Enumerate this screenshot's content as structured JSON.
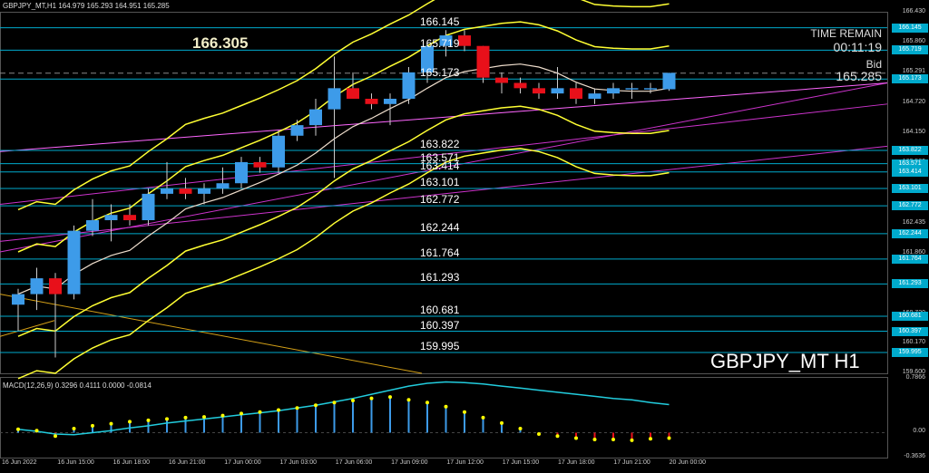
{
  "header": {
    "title": "GBPJPY_MT,H1  164.979 165.293 164.951 165.285",
    "big_price": "166.305",
    "time_remain_label": "TIME REMAIN",
    "time_remain": "00:11:19",
    "bid_label": "Bid",
    "bid": "165.285",
    "symbol_label": "GBPJPY_MT H1"
  },
  "levels": [
    {
      "label": "166.145",
      "value": 166.145
    },
    {
      "label": "165.719",
      "value": 165.719
    },
    {
      "label": "165.173",
      "value": 165.173
    },
    {
      "label": "163.822",
      "value": 163.822
    },
    {
      "label": "163.571",
      "value": 163.571
    },
    {
      "label": "163.414",
      "value": 163.414
    },
    {
      "label": "163.101",
      "value": 163.101
    },
    {
      "label": "162.772",
      "value": 162.772
    },
    {
      "label": "162.244",
      "value": 162.244
    },
    {
      "label": "161.764",
      "value": 161.764
    },
    {
      "label": "161.293",
      "value": 161.293
    },
    {
      "label": "160.681",
      "value": 160.681
    },
    {
      "label": "160.397",
      "value": 160.397
    },
    {
      "label": "159.995",
      "value": 159.995
    }
  ],
  "price_axis": {
    "ticks": [
      "166.430",
      "165.860",
      "165.291",
      "164.720",
      "164.150",
      "163.580",
      "163.010",
      "162.435",
      "161.860",
      "161.290",
      "160.720",
      "160.170",
      "159.600"
    ],
    "min": 159.6,
    "max": 166.43
  },
  "macd": {
    "title": "MACD(12,26,9) 0.3296 0.4111 0.0000 -0.0814",
    "ticks": [
      "0.7866",
      "0.00",
      "-0.3636"
    ],
    "max": 0.7866,
    "min": -0.3636
  },
  "time_axis": [
    "16 Jun 2022",
    "16 Jun 15:00",
    "16 Jun 18:00",
    "16 Jun 21:00",
    "17 Jun 00:00",
    "17 Jun 03:00",
    "17 Jun 06:00",
    "17 Jun 09:00",
    "17 Jun 12:00",
    "17 Jun 15:00",
    "17 Jun 18:00",
    "17 Jun 21:00",
    "20 Jun 00:00"
  ],
  "colors": {
    "bull": "#3d9be9",
    "bear": "#e8101a",
    "band": "#ffff33",
    "level": "#00aacc",
    "trend": "#cc33cc",
    "macd_signal": "#ffff00",
    "macd_line": "#22ccdd"
  },
  "candles": [
    {
      "o": 160.9,
      "h": 161.2,
      "l": 160.4,
      "c": 161.1
    },
    {
      "o": 161.1,
      "h": 161.6,
      "l": 160.8,
      "c": 161.4
    },
    {
      "o": 161.4,
      "h": 161.5,
      "l": 159.9,
      "c": 161.1
    },
    {
      "o": 161.1,
      "h": 162.4,
      "l": 161.0,
      "c": 162.3
    },
    {
      "o": 162.3,
      "h": 162.9,
      "l": 162.2,
      "c": 162.5
    },
    {
      "o": 162.5,
      "h": 162.8,
      "l": 162.1,
      "c": 162.6
    },
    {
      "o": 162.6,
      "h": 162.8,
      "l": 162.4,
      "c": 162.5
    },
    {
      "o": 162.5,
      "h": 163.1,
      "l": 162.4,
      "c": 163.0
    },
    {
      "o": 163.0,
      "h": 163.6,
      "l": 162.9,
      "c": 163.1
    },
    {
      "o": 163.1,
      "h": 163.3,
      "l": 162.9,
      "c": 163.0
    },
    {
      "o": 163.0,
      "h": 163.2,
      "l": 162.8,
      "c": 163.1
    },
    {
      "o": 163.1,
      "h": 163.5,
      "l": 163.0,
      "c": 163.2
    },
    {
      "o": 163.2,
      "h": 163.7,
      "l": 163.1,
      "c": 163.6
    },
    {
      "o": 163.6,
      "h": 163.7,
      "l": 163.4,
      "c": 163.5
    },
    {
      "o": 163.5,
      "h": 164.2,
      "l": 163.4,
      "c": 164.1
    },
    {
      "o": 164.1,
      "h": 164.4,
      "l": 164.0,
      "c": 164.3
    },
    {
      "o": 164.3,
      "h": 164.8,
      "l": 164.1,
      "c": 164.6
    },
    {
      "o": 164.6,
      "h": 165.6,
      "l": 163.3,
      "c": 165.0
    },
    {
      "o": 165.0,
      "h": 165.3,
      "l": 164.8,
      "c": 164.8
    },
    {
      "o": 164.8,
      "h": 164.9,
      "l": 164.6,
      "c": 164.7
    },
    {
      "o": 164.7,
      "h": 164.9,
      "l": 164.3,
      "c": 164.8
    },
    {
      "o": 164.8,
      "h": 165.4,
      "l": 164.7,
      "c": 165.3
    },
    {
      "o": 165.3,
      "h": 165.9,
      "l": 165.1,
      "c": 165.8
    },
    {
      "o": 165.8,
      "h": 166.1,
      "l": 165.6,
      "c": 166.0
    },
    {
      "o": 166.0,
      "h": 166.1,
      "l": 165.7,
      "c": 165.8
    },
    {
      "o": 165.8,
      "h": 165.8,
      "l": 165.1,
      "c": 165.2
    },
    {
      "o": 165.2,
      "h": 165.3,
      "l": 164.9,
      "c": 165.1
    },
    {
      "o": 165.1,
      "h": 165.2,
      "l": 164.9,
      "c": 165.0
    },
    {
      "o": 165.0,
      "h": 165.1,
      "l": 164.8,
      "c": 164.9
    },
    {
      "o": 164.9,
      "h": 165.4,
      "l": 164.8,
      "c": 165.0
    },
    {
      "o": 165.0,
      "h": 165.1,
      "l": 164.7,
      "c": 164.8
    },
    {
      "o": 164.8,
      "h": 165.0,
      "l": 164.7,
      "c": 164.9
    },
    {
      "o": 164.9,
      "h": 165.1,
      "l": 164.8,
      "c": 165.0
    },
    {
      "o": 165.0,
      "h": 165.1,
      "l": 164.8,
      "c": 165.0
    },
    {
      "o": 165.0,
      "h": 165.1,
      "l": 164.9,
      "c": 165.0
    },
    {
      "o": 164.98,
      "h": 165.29,
      "l": 164.95,
      "c": 165.29
    }
  ],
  "macd_hist": [
    0.05,
    0.03,
    -0.05,
    0.06,
    0.1,
    0.13,
    0.16,
    0.18,
    0.2,
    0.22,
    0.23,
    0.25,
    0.28,
    0.3,
    0.33,
    0.36,
    0.4,
    0.44,
    0.47,
    0.5,
    0.52,
    0.48,
    0.44,
    0.38,
    0.3,
    0.22,
    0.14,
    0.06,
    -0.02,
    -0.05,
    -0.08,
    -0.1,
    -0.1,
    -0.11,
    -0.09,
    -0.08
  ],
  "macd_signal": [
    0.05,
    0.02,
    -0.02,
    -0.03,
    0.0,
    0.03,
    0.07,
    0.1,
    0.14,
    0.17,
    0.2,
    0.23,
    0.26,
    0.29,
    0.32,
    0.36,
    0.4,
    0.45,
    0.5,
    0.56,
    0.62,
    0.68,
    0.72,
    0.74,
    0.73,
    0.71,
    0.68,
    0.65,
    0.62,
    0.59,
    0.56,
    0.53,
    0.5,
    0.48,
    0.44,
    0.41
  ]
}
